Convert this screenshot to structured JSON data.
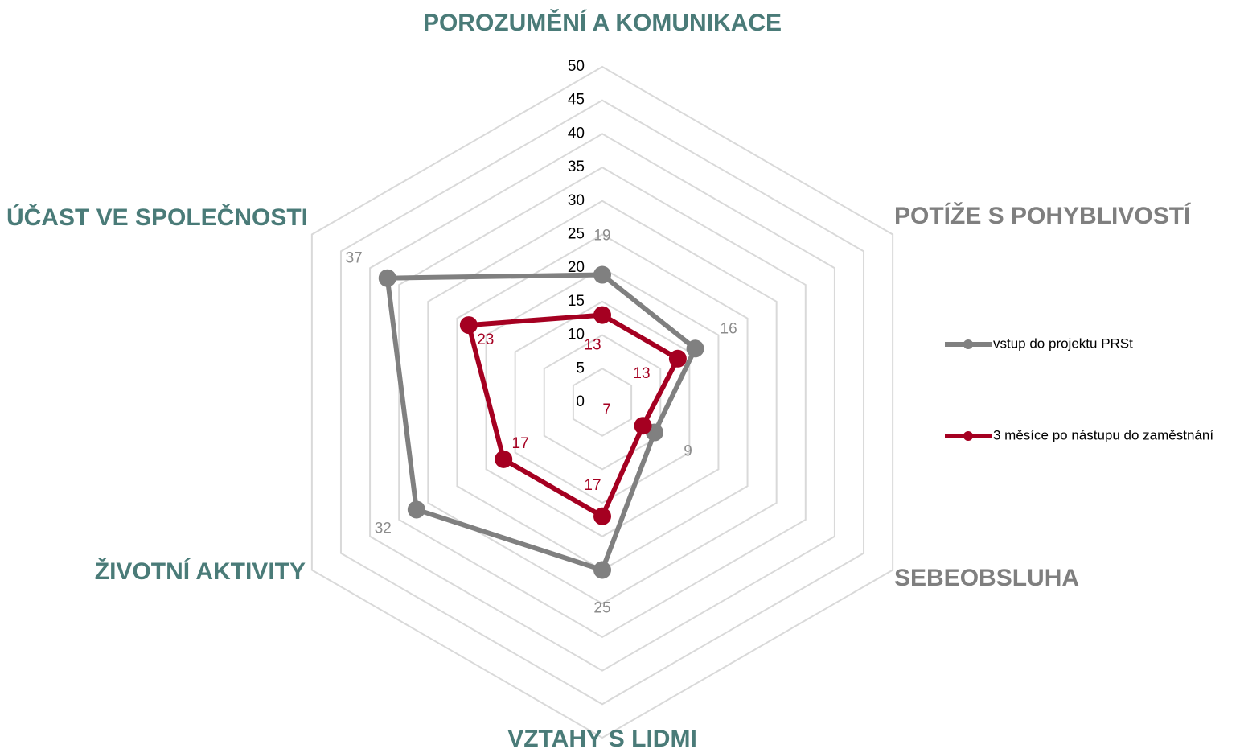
{
  "chart_data": {
    "type": "radar",
    "categories": [
      "POROZUMĚNÍ A KOMUNIKACE",
      "POTÍŽE S POHYBLIVOSTÍ",
      "SEBEOBSLUHA",
      "VZTAHY S LIDMI",
      "ŽIVOTNÍ AKTIVITY",
      "ÚČAST VE SPOLEČNOSTI"
    ],
    "category_colors": [
      "#4a7b78",
      "#7f7f7f",
      "#7f7f7f",
      "#4a7b78",
      "#4a7b78",
      "#4a7b78"
    ],
    "series": [
      {
        "name": "vstup do projektu PRSt",
        "color": "#808080",
        "label_color": "#8c8c8c",
        "values": [
          19,
          16,
          9,
          25,
          32,
          37
        ]
      },
      {
        "name": "3 měsíce po nástupu do zaměstnání",
        "color": "#a50021",
        "label_color": "#a50021",
        "values": [
          13,
          13,
          7,
          17,
          17,
          23
        ]
      }
    ],
    "ylim": [
      0,
      50
    ],
    "yticks": [
      0,
      5,
      10,
      15,
      20,
      25,
      30,
      35,
      40,
      45,
      50
    ],
    "grid": true,
    "legend": "right"
  }
}
